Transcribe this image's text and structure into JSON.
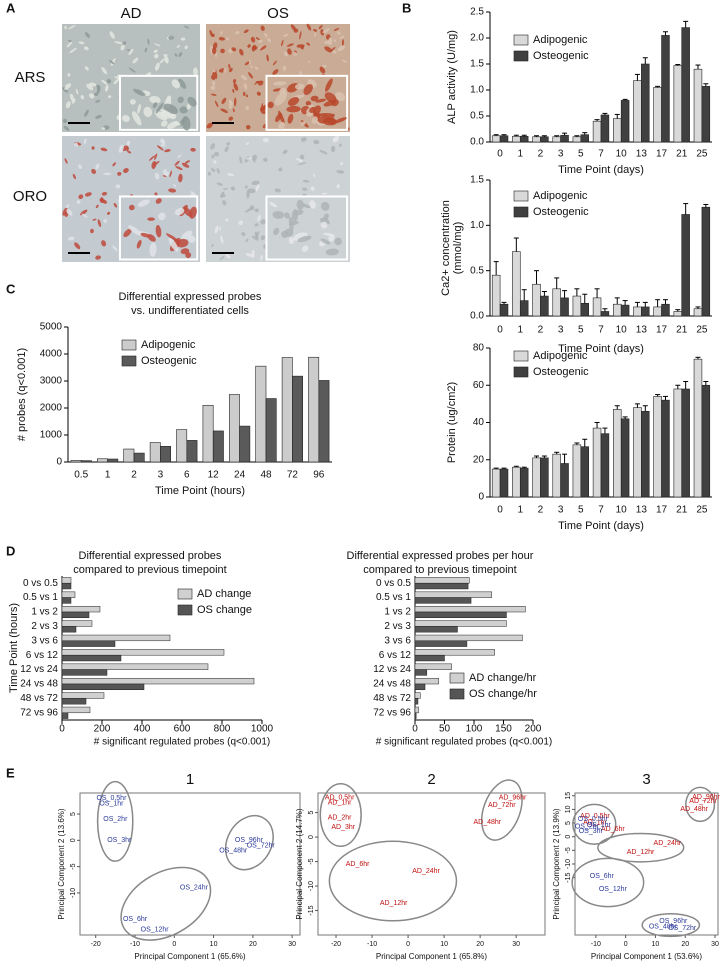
{
  "panel_labels": [
    "A",
    "B",
    "C",
    "D",
    "E"
  ],
  "images": {
    "columns": [
      "AD",
      "OS"
    ],
    "rows": [
      "ARS",
      "ORO"
    ]
  },
  "chart_data": [
    {
      "type": "bar",
      "xlabel": "Time Point (days)",
      "ylabel": "ALP activity (U/mg)",
      "categories": [
        "0",
        "1",
        "2",
        "3",
        "5",
        "7",
        "10",
        "13",
        "17",
        "21",
        "25"
      ],
      "series": [
        {
          "name": "Adipogenic",
          "color": "#d9d9d9",
          "values": [
            0.12,
            0.11,
            0.1,
            0.1,
            0.1,
            0.4,
            0.45,
            1.18,
            1.05,
            1.47,
            1.4
          ],
          "errors": [
            0.02,
            0.02,
            0.02,
            0.02,
            0.02,
            0.03,
            0.08,
            0.12,
            0.02,
            0.02,
            0.08
          ]
        },
        {
          "name": "Osteogenic",
          "color": "#404040",
          "values": [
            0.12,
            0.11,
            0.1,
            0.13,
            0.14,
            0.52,
            0.8,
            1.5,
            2.05,
            2.2,
            1.07
          ],
          "errors": [
            0.02,
            0.02,
            0.02,
            0.04,
            0.04,
            0.03,
            0.02,
            0.12,
            0.07,
            0.12,
            0.05
          ]
        }
      ],
      "ylim": [
        0,
        2.5
      ],
      "yticks": [
        {
          "value": 0,
          "label": "0.0"
        },
        0.5,
        {
          "value": 1,
          "label": "1.0"
        },
        1.5,
        {
          "value": 2,
          "label": "2.0"
        },
        2.5
      ],
      "legend": "upper left"
    },
    {
      "type": "bar",
      "xlabel": "Time Point (days)",
      "ylabel": [
        "Ca2+ concentration",
        "(mmol/mg)"
      ],
      "categories": [
        "0",
        "1",
        "2",
        "3",
        "5",
        "7",
        "10",
        "13",
        "17",
        "21",
        "25"
      ],
      "series": [
        {
          "name": "Adipogenic",
          "color": "#d9d9d9",
          "values": [
            0.45,
            0.71,
            0.35,
            0.3,
            0.22,
            0.2,
            0.13,
            0.1,
            0.1,
            0.05,
            0.08
          ],
          "errors": [
            0.15,
            0.15,
            0.15,
            0.12,
            0.08,
            0.1,
            0.07,
            0.05,
            0.08,
            0.02,
            0.02
          ]
        },
        {
          "name": "Osteogenic",
          "color": "#404040",
          "values": [
            0.13,
            0.17,
            0.22,
            0.2,
            0.14,
            0.05,
            0.12,
            0.1,
            0.13,
            1.12,
            1.2
          ],
          "errors": [
            0.02,
            0.12,
            0.05,
            0.08,
            0.1,
            0.03,
            0.05,
            0.05,
            0.05,
            0.12,
            0.03
          ]
        }
      ],
      "ylim": [
        0,
        1.5
      ],
      "yticks": [
        {
          "value": 0,
          "label": "0.0"
        },
        0.5,
        {
          "value": 1,
          "label": "1.0"
        },
        1.5
      ],
      "legend": "upper left"
    },
    {
      "type": "bar",
      "xlabel": "Time Point (days)",
      "ylabel": "Protein (ug/cm2)",
      "categories": [
        "0",
        "1",
        "2",
        "3",
        "5",
        "7",
        "10",
        "13",
        "17",
        "21",
        "25"
      ],
      "series": [
        {
          "name": "Adipogenic",
          "color": "#d9d9d9",
          "values": [
            15,
            16,
            21,
            23,
            28,
            37,
            47,
            48,
            54,
            58,
            74
          ],
          "errors": [
            0.5,
            0.5,
            1,
            1,
            1,
            3,
            2,
            2,
            1,
            2,
            1
          ]
        },
        {
          "name": "Osteogenic",
          "color": "#404040",
          "values": [
            15,
            15.5,
            21,
            18,
            27,
            34,
            42,
            46,
            52,
            58,
            60
          ],
          "errors": [
            0.5,
            0.5,
            1,
            5,
            4,
            3,
            1,
            3,
            2,
            4,
            2
          ]
        }
      ],
      "ylim": [
        0,
        80
      ],
      "yticks": [
        0,
        20,
        40,
        60,
        80
      ],
      "legend": "upper left"
    },
    {
      "type": "bar",
      "title": "Differential expressed probes",
      "subtitle": "vs. undifferentiated cells",
      "xlabel": "Time Point (hours)",
      "ylabel": "# probes (q<0.001)",
      "categories": [
        "0.5",
        "1",
        "2",
        "3",
        "6",
        "12",
        "24",
        "48",
        "72",
        "96"
      ],
      "series": [
        {
          "name": "Adipogenic",
          "color": "#cccccc",
          "values": [
            60,
            120,
            480,
            720,
            1200,
            2100,
            2500,
            3550,
            3870,
            3880
          ]
        },
        {
          "name": "Osteogenic",
          "color": "#5a5a5a",
          "values": [
            50,
            110,
            330,
            580,
            800,
            1150,
            1330,
            2350,
            3180,
            3020
          ]
        }
      ],
      "ylim": [
        0,
        5000
      ],
      "yticks": [
        0,
        1000,
        2000,
        3000,
        4000,
        5000
      ],
      "legend": "upper left"
    },
    {
      "type": "barh",
      "title": "Differential expressed probes",
      "subtitle": "compared to previous timepoint",
      "xlabel": "# significant regulated probes (q<0.001)",
      "ylabel": "Time Point (hours)",
      "categories": [
        "0 vs 0.5",
        "0.5 vs 1",
        "1 vs 2",
        "2 vs 3",
        "3 vs 6",
        "6 vs 12",
        "12 vs 24",
        "24 vs 48",
        "48 vs 72",
        "72 vs 96"
      ],
      "series": [
        {
          "name": "AD change",
          "color": "#d0d0d0",
          "values": [
            45,
            65,
            190,
            150,
            540,
            810,
            730,
            960,
            210,
            140
          ]
        },
        {
          "name": "OS change",
          "color": "#555555",
          "values": [
            45,
            45,
            135,
            70,
            265,
            295,
            225,
            410,
            120,
            30
          ]
        }
      ],
      "xlim": [
        0,
        1000
      ],
      "xticks": [
        0,
        200,
        400,
        600,
        800,
        1000
      ],
      "legend": "upper right"
    },
    {
      "type": "barh",
      "title": "Differential expressed probes per hour",
      "subtitle": "compared to previous timepoint",
      "xlabel": "# significant regulated probes (q<0.001)",
      "categories": [
        "0 vs 0.5",
        "0.5 vs 1",
        "1 vs 2",
        "2 vs 3",
        "3 vs 6",
        "6 vs 12",
        "12 vs 24",
        "24 vs 48",
        "48 vs 72",
        "72 vs 96"
      ],
      "series": [
        {
          "name": "AD change/hr",
          "color": "#d0d0d0",
          "values": [
            92,
            130,
            187,
            155,
            182,
            135,
            62,
            40,
            9,
            6
          ]
        },
        {
          "name": "OS change/hr",
          "color": "#555555",
          "values": [
            90,
            95,
            155,
            72,
            88,
            50,
            20,
            17,
            5,
            2
          ]
        }
      ],
      "xlim": [
        0,
        200
      ],
      "xticks": [
        0,
        50,
        100,
        150,
        200
      ],
      "legend": "lower right"
    },
    {
      "type": "scatter",
      "title": "1",
      "xlabel": "Principal Component 1 (65.6%)",
      "ylabel": "Principal Component 2 (13.6%)",
      "series": [
        {
          "color": "#2b3a9b",
          "labels": [
            "OS_0.5hr",
            "OS_1hr",
            "OS_2hr",
            "OS_3hr",
            "OS_96hr",
            "OS_72hr",
            "OS_48hr",
            "OS_24hr",
            "OS_6hr",
            "OS_12hr"
          ],
          "x": [
            -16,
            -16,
            -15,
            -14,
            19,
            22,
            15,
            5,
            -10,
            -5
          ],
          "values": [
            8,
            7,
            4,
            0,
            0,
            -1,
            -2,
            -9,
            -15,
            -17
          ]
        }
      ],
      "xlim": [
        -24,
        32
      ],
      "ylim": [
        -18,
        9
      ],
      "xticks": [
        -20,
        -10,
        0,
        10,
        20,
        30
      ],
      "yticks": [
        -10,
        -5,
        0,
        5
      ]
    },
    {
      "type": "scatter",
      "title": "2",
      "xlabel": "Principal Component 1 (65.8%)",
      "ylabel": "Principal Component 2 (14.7%)",
      "series": [
        {
          "color": "#c01010",
          "labels": [
            "AD_0.5hr",
            "AD_1hr",
            "AD_2hr",
            "AD_3hr",
            "AD_96hr",
            "AD_72hr",
            "AD_48hr",
            "AD_6hr",
            "AD_24hr",
            "AD_12hr"
          ],
          "x": [
            -19,
            -19,
            -19,
            -18,
            29,
            26,
            22,
            -14,
            5,
            -4
          ],
          "values": [
            8,
            7,
            4,
            2,
            8,
            6.5,
            3,
            -5.5,
            -7,
            -13.5
          ]
        }
      ],
      "xlim": [
        -25,
        38
      ],
      "ylim": [
        -20,
        9
      ],
      "xticks": [
        -20,
        -10,
        0,
        10,
        20,
        30
      ],
      "yticks": [
        -15,
        -10,
        -5,
        0,
        5
      ]
    },
    {
      "type": "scatter",
      "title": "3",
      "xlabel": "Principal Component 1 (53.6%)",
      "ylabel": "Principal Component 2 (13.9%)",
      "series": [
        {
          "color": "#c01010",
          "labels": [
            "AD_0.5hr",
            "AD_1hr",
            "AD_6hr",
            "AD_24hr",
            "AD_12hr",
            "AD_96hr",
            "AD_72hr",
            "AD_48hr"
          ],
          "x": [
            -10.3,
            -10.3,
            -4.3,
            14,
            5,
            27,
            26,
            23
          ],
          "values": [
            7.6,
            5.2,
            2.8,
            -2.4,
            -5.6,
            14.5,
            13,
            10
          ]
        },
        {
          "color": "#2b3a9b",
          "labels": [
            "OS_0.5hr",
            "OS_1hr",
            "OS_2hr",
            "OS_3hr",
            "OS_6hr",
            "OS_12hr",
            "OS_96hr",
            "OS_48hr",
            "OS_72hr"
          ],
          "x": [
            -11,
            -9,
            -13,
            -11.7,
            -8,
            -4.3,
            16,
            12.5,
            19
          ],
          "values": [
            6.4,
            4.2,
            3.6,
            2,
            -14.4,
            -19.2,
            -31,
            -33,
            -33.5
          ]
        }
      ],
      "xlim": [
        -17,
        31
      ],
      "ylim": [
        -36,
        16
      ],
      "xticks": [
        -10,
        0,
        10,
        20,
        30
      ],
      "yticks": [
        -15,
        -10,
        -5,
        0,
        5,
        10,
        15
      ]
    }
  ]
}
